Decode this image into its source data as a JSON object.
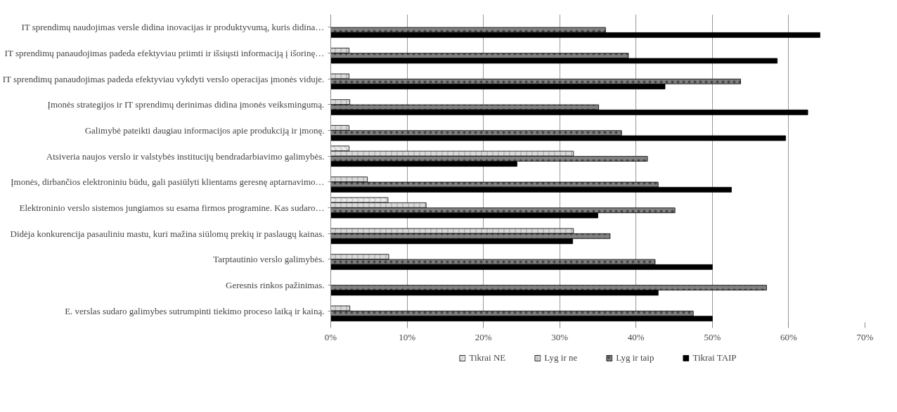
{
  "chart_data": {
    "type": "bar",
    "orientation": "horizontal",
    "categories": [
      "IT sprendimų naudojimas versle didina inovacijas ir produktyvumą, kuris didina…",
      "IT sprendimų panaudojimas padeda efektyviau priimti ir išsiųsti informaciją į išorinę…",
      "IT sprendimų panaudojimas padeda efektyviau vykdyti verslo operacijas įmonės viduje.",
      "Įmonės strategijos ir IT sprendimų derinimas didina įmonės veiksmingumą.",
      "Galimybė pateikti daugiau informacijos apie produkciją ir įmonę.",
      "Atsiveria naujos verslo ir valstybės institucijų bendradarbiavimo galimybės.",
      "Įmonės, dirbančios elektroniniu būdu, gali pasiūlyti klientams geresnę aptarnavimo…",
      "Elektroninio verslo sistemos jungiamos su esama firmos programine. Kas sudaro…",
      "Didėja konkurencija pasauliniu mastu, kuri mažina siūlomų prekių ir paslaugų kainas.",
      "Tarptautinio verslo galimybės.",
      "Geresnis rinkos pažinimas.",
      "E. verslas sudaro galimybes sutrumpinti tiekimo proceso laiką ir kainą."
    ],
    "series": [
      {
        "name": "Tikrai NE",
        "color": "#ebebeb",
        "values": [
          null,
          null,
          null,
          null,
          null,
          2.4,
          null,
          7.5,
          null,
          null,
          null,
          null
        ]
      },
      {
        "name": "Lyg ir ne",
        "color": "#d9d9d9",
        "values": [
          null,
          2.4,
          2.4,
          2.5,
          2.4,
          31.8,
          4.8,
          12.5,
          31.8,
          7.6,
          null,
          2.5
        ]
      },
      {
        "name": "Lyg ir taip",
        "color": "#808080",
        "values": [
          36.0,
          39.0,
          53.7,
          35.1,
          38.1,
          41.5,
          42.9,
          45.1,
          36.6,
          42.5,
          57.1,
          47.5
        ]
      },
      {
        "name": "Tikrai TAIP",
        "color": "#000000",
        "values": [
          64.1,
          58.5,
          43.8,
          62.5,
          59.6,
          24.4,
          52.5,
          35.0,
          31.7,
          50.0,
          42.9,
          50.0
        ]
      }
    ],
    "xlim": [
      0,
      70
    ],
    "xticks": [
      {
        "value": 0,
        "label": "0%"
      },
      {
        "value": 10,
        "label": "10%"
      },
      {
        "value": 20,
        "label": "20%"
      },
      {
        "value": 30,
        "label": "30%"
      },
      {
        "value": 40,
        "label": "40%"
      },
      {
        "value": 50,
        "label": "50%"
      },
      {
        "value": 60,
        "label": "60%"
      },
      {
        "value": 70,
        "label": "70%"
      }
    ],
    "grid": "x",
    "legend": "bottom"
  }
}
